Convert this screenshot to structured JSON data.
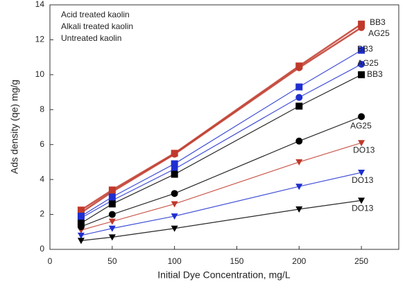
{
  "chart_data": {
    "type": "line",
    "xlabel": "Initial Dye Concentration, mg/L",
    "ylabel": "Ads density (qe) mg/g",
    "x": [
      25,
      50,
      100,
      200,
      250
    ],
    "xlim": [
      0,
      280
    ],
    "xticks": [
      0,
      50,
      100,
      150,
      200,
      250
    ],
    "ylim": [
      0,
      14
    ],
    "yticks": [
      0,
      2,
      4,
      6,
      8,
      10,
      12,
      14
    ],
    "groups": [
      {
        "name": "Acid treated kaolin",
        "color": "#c0392b",
        "series": [
          {
            "name": "BB3",
            "marker": "square",
            "values": [
              2.25,
              3.4,
              5.5,
              10.5,
              12.9
            ]
          },
          {
            "name": "AG25",
            "marker": "circle",
            "values": [
              2.1,
              3.3,
              5.45,
              10.4,
              12.7
            ]
          },
          {
            "name": "DO13",
            "marker": "triangle",
            "values": [
              1.1,
              1.6,
              2.6,
              5.0,
              6.1
            ]
          }
        ]
      },
      {
        "name": "Alkali treated kaolin",
        "color": "#1f2fd0",
        "series": [
          {
            "name": "BB3",
            "marker": "square",
            "values": [
              1.9,
              3.0,
              4.9,
              9.3,
              11.4
            ]
          },
          {
            "name": "AG25",
            "marker": "circle",
            "values": [
              1.8,
              2.8,
              4.6,
              8.7,
              10.6
            ]
          },
          {
            "name": "DO13",
            "marker": "triangle",
            "values": [
              0.8,
              1.2,
              1.9,
              3.6,
              4.4
            ]
          }
        ]
      },
      {
        "name": "Untreated kaolin",
        "color": "#000000",
        "series": [
          {
            "name": "BB3",
            "marker": "square",
            "values": [
              1.5,
              2.6,
              4.3,
              8.2,
              10.0
            ]
          },
          {
            "name": "AG25",
            "marker": "circle",
            "values": [
              1.3,
              2.0,
              3.2,
              6.2,
              7.6
            ]
          },
          {
            "name": "DO13",
            "marker": "triangle",
            "values": [
              0.5,
              0.7,
              1.2,
              2.3,
              2.8
            ]
          }
        ]
      }
    ]
  }
}
